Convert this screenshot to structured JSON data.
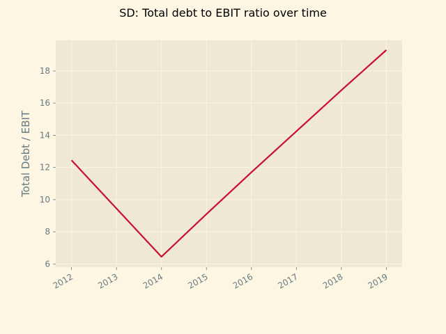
{
  "chart_data": {
    "type": "line",
    "title": "SD: Total debt to EBIT ratio over time",
    "xlabel": "",
    "ylabel": "Total Debt / EBIT",
    "x": [
      "2012",
      "2013",
      "2014",
      "2015",
      "2016",
      "2017",
      "2018",
      "2019"
    ],
    "y_ticks": [
      "6",
      "8",
      "10",
      "12",
      "14",
      "16",
      "18"
    ],
    "series": [
      {
        "values": [
          12.45,
          9.45,
          6.45,
          9.1,
          11.7,
          14.25,
          16.8,
          19.3
        ]
      }
    ],
    "xlim": [
      2011.65,
      2019.35
    ],
    "ylim": [
      5.8,
      19.9
    ],
    "grid": true,
    "colors": {
      "line": "#c8102e",
      "plot_bg": "#eee8d5",
      "grid": "#fdf6e3",
      "page_bg": "#fdf6e3",
      "text": "#657b83"
    }
  }
}
